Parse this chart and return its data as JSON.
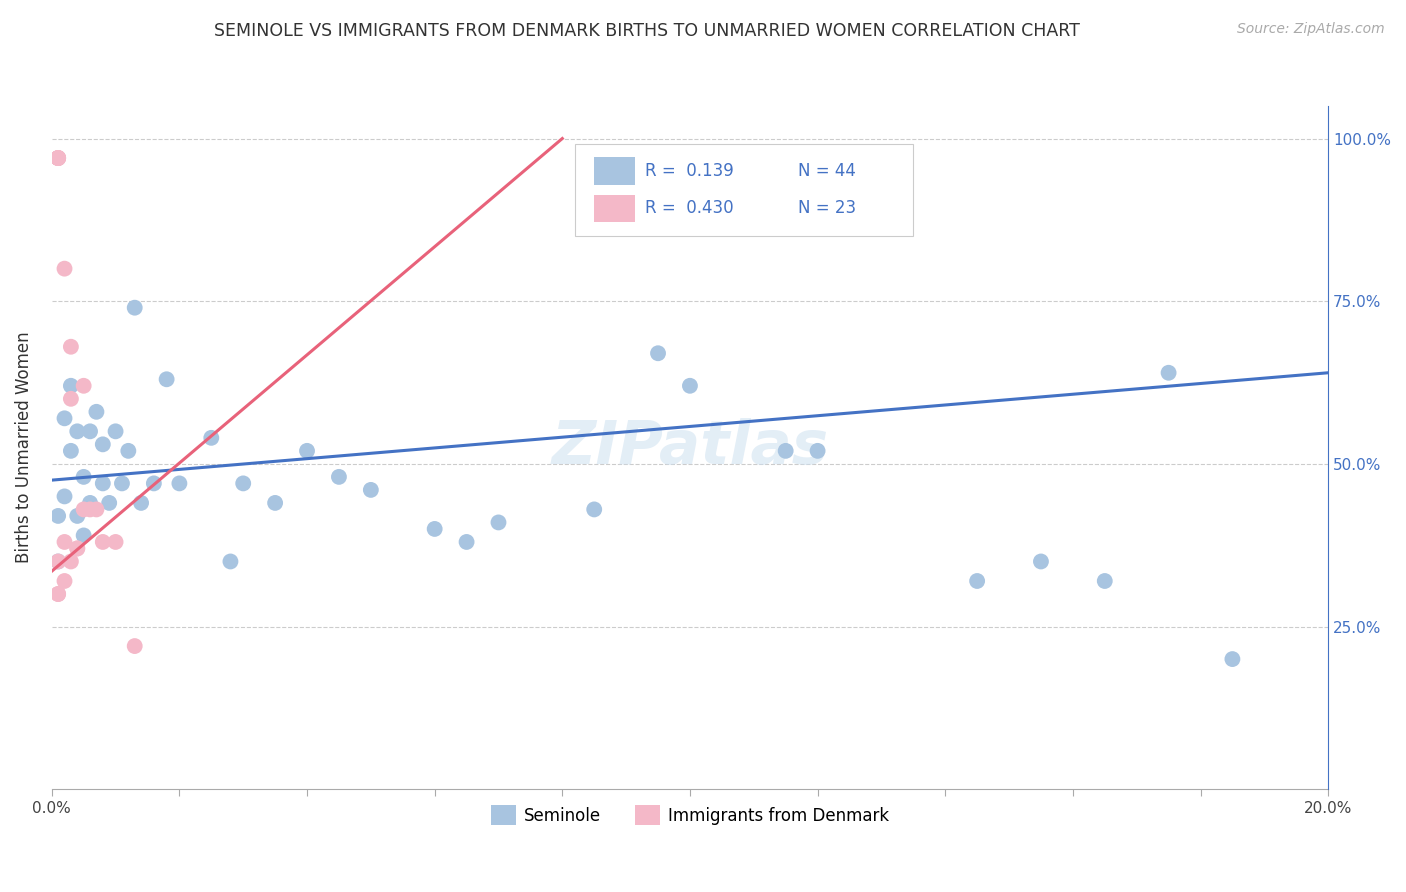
{
  "title": "SEMINOLE VS IMMIGRANTS FROM DENMARK BIRTHS TO UNMARRIED WOMEN CORRELATION CHART",
  "source": "Source: ZipAtlas.com",
  "ylabel": "Births to Unmarried Women",
  "xmin": 0.0,
  "xmax": 0.2,
  "ymin": 0.0,
  "ymax": 1.05,
  "blue_color": "#a8c4e0",
  "pink_color": "#f4b8c8",
  "blue_line_color": "#4472c4",
  "pink_line_color": "#e8627a",
  "seminole_x": [
    0.001,
    0.001,
    0.002,
    0.002,
    0.003,
    0.003,
    0.004,
    0.004,
    0.005,
    0.005,
    0.006,
    0.006,
    0.007,
    0.008,
    0.008,
    0.009,
    0.01,
    0.011,
    0.012,
    0.013,
    0.014,
    0.016,
    0.018,
    0.02,
    0.025,
    0.028,
    0.03,
    0.035,
    0.04,
    0.045,
    0.05,
    0.06,
    0.065,
    0.07,
    0.085,
    0.095,
    0.1,
    0.115,
    0.12,
    0.145,
    0.155,
    0.165,
    0.175,
    0.185
  ],
  "seminole_y": [
    0.42,
    0.35,
    0.57,
    0.45,
    0.62,
    0.52,
    0.55,
    0.42,
    0.48,
    0.39,
    0.55,
    0.44,
    0.58,
    0.47,
    0.53,
    0.44,
    0.55,
    0.47,
    0.52,
    0.74,
    0.44,
    0.47,
    0.63,
    0.47,
    0.54,
    0.35,
    0.47,
    0.44,
    0.52,
    0.48,
    0.46,
    0.4,
    0.38,
    0.41,
    0.43,
    0.67,
    0.62,
    0.52,
    0.52,
    0.32,
    0.35,
    0.32,
    0.64,
    0.2
  ],
  "denmark_x": [
    0.001,
    0.001,
    0.001,
    0.001,
    0.001,
    0.001,
    0.001,
    0.001,
    0.002,
    0.002,
    0.002,
    0.003,
    0.003,
    0.003,
    0.004,
    0.004,
    0.005,
    0.005,
    0.006,
    0.007,
    0.008,
    0.01,
    0.013
  ],
  "denmark_y": [
    0.97,
    0.97,
    0.97,
    0.97,
    0.97,
    0.35,
    0.3,
    0.3,
    0.8,
    0.38,
    0.32,
    0.68,
    0.6,
    0.35,
    0.37,
    0.37,
    0.62,
    0.43,
    0.43,
    0.43,
    0.38,
    0.38,
    0.22
  ],
  "blue_trendline_x0": 0.0,
  "blue_trendline_y0": 0.475,
  "blue_trendline_x1": 0.2,
  "blue_trendline_y1": 0.64,
  "pink_trendline_x0": 0.0,
  "pink_trendline_y0": 0.335,
  "pink_trendline_x1": 0.08,
  "pink_trendline_y1": 1.0
}
